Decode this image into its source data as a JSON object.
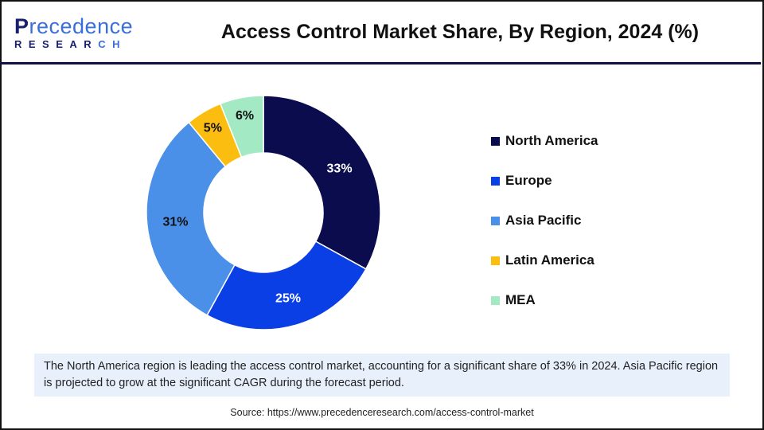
{
  "logo": {
    "line1_a": "P",
    "line1_b": "recedence",
    "line2_a": "RESEAR",
    "line2_b": "CH"
  },
  "chart_data": {
    "type": "pie",
    "subtype": "donut",
    "title": "Access Control Market Share, By Region, 2024 (%)",
    "categories": [
      "North America",
      "Europe",
      "Asia Pacific",
      "Latin America",
      "MEA"
    ],
    "values": [
      33,
      25,
      31,
      5,
      6
    ],
    "labels": [
      "33%",
      "25%",
      "31%",
      "5%",
      "6%"
    ],
    "colors": [
      "#0a0c4d",
      "#0b3fe6",
      "#4a8fe8",
      "#fbbd0f",
      "#a3e9c3"
    ],
    "legend_placement": "right"
  },
  "note": "The North America region is leading the access control market, accounting for a significant share of 33% in 2024. Asia Pacific region is projected to grow at the significant CAGR during the forecast period.",
  "source": "Source: https://www.precedenceresearch.com/access-control-market"
}
